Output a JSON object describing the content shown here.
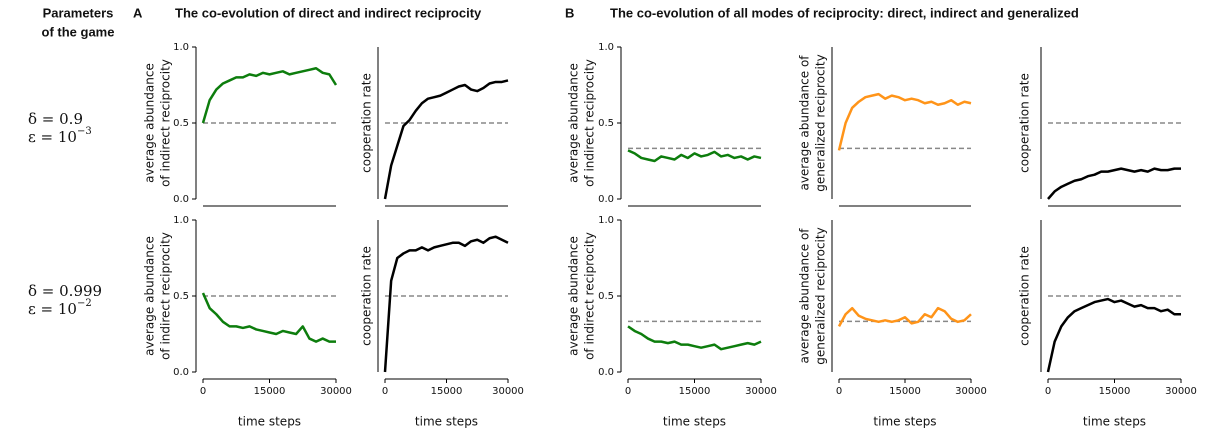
{
  "params_heading": [
    "Parameters",
    "of the game"
  ],
  "params": [
    {
      "delta": "δ = 0.9",
      "epsilon": "ε = 10",
      "epsilon_exp": "−3"
    },
    {
      "delta": "δ = 0.999",
      "epsilon": "ε = 10",
      "epsilon_exp": "−2"
    }
  ],
  "panels": [
    {
      "letter": "A",
      "title": "The co-evolution of direct and indirect reciprocity"
    },
    {
      "letter": "B",
      "title": "The co-evolution of all modes of reciprocity: direct, indirect and generalized"
    }
  ],
  "chart_data": [
    {
      "type": "line",
      "ylabel": [
        "average abundance",
        "of indirect reciprocity"
      ],
      "color": "#0d7d0d",
      "hline": 0.5,
      "x": [
        0,
        1500,
        3000,
        4500,
        6000,
        7500,
        9000,
        10500,
        12000,
        13500,
        15000,
        16500,
        18000,
        19500,
        21000,
        22500,
        24000,
        25500,
        27000,
        28500,
        30000
      ],
      "values": [
        0.5,
        0.65,
        0.72,
        0.76,
        0.78,
        0.8,
        0.8,
        0.82,
        0.81,
        0.83,
        0.82,
        0.83,
        0.84,
        0.82,
        0.83,
        0.84,
        0.85,
        0.86,
        0.83,
        0.82,
        0.75
      ],
      "xlim": [
        0,
        30000
      ],
      "ylim": [
        0,
        1
      ],
      "yticks": [
        {
          "value": 0,
          "label": "0.0"
        },
        {
          "value": 0.5,
          "label": "0.5"
        },
        {
          "value": 1,
          "label": "1.0"
        }
      ]
    },
    {
      "type": "line",
      "ylabel": [
        "cooperation rate"
      ],
      "color": "#000000",
      "hline": 0.5,
      "x": [
        0,
        1500,
        3000,
        4500,
        6000,
        7500,
        9000,
        10500,
        12000,
        13500,
        15000,
        16500,
        18000,
        19500,
        21000,
        22500,
        24000,
        25500,
        27000,
        28500,
        30000
      ],
      "values": [
        0,
        0.22,
        0.35,
        0.48,
        0.52,
        0.58,
        0.63,
        0.66,
        0.67,
        0.68,
        0.7,
        0.72,
        0.74,
        0.75,
        0.72,
        0.71,
        0.73,
        0.76,
        0.77,
        0.77,
        0.78
      ],
      "xlim": [
        0,
        30000
      ],
      "ylim": [
        0,
        1
      ]
    },
    {
      "type": "line",
      "ylabel": [
        "average abundance",
        "of indirect reciprocity"
      ],
      "color": "#0d7d0d",
      "hline": 0.333,
      "x": [
        0,
        1500,
        3000,
        4500,
        6000,
        7500,
        9000,
        10500,
        12000,
        13500,
        15000,
        16500,
        18000,
        19500,
        21000,
        22500,
        24000,
        25500,
        27000,
        28500,
        30000
      ],
      "values": [
        0.32,
        0.3,
        0.27,
        0.26,
        0.25,
        0.28,
        0.27,
        0.26,
        0.29,
        0.27,
        0.3,
        0.28,
        0.29,
        0.31,
        0.28,
        0.29,
        0.27,
        0.28,
        0.26,
        0.28,
        0.27
      ],
      "xlim": [
        0,
        30000
      ],
      "ylim": [
        0,
        1
      ],
      "yticks": [
        {
          "value": 0,
          "label": "0.0"
        },
        {
          "value": 0.5,
          "label": "0.5"
        },
        {
          "value": 1,
          "label": "1.0"
        }
      ]
    },
    {
      "type": "line",
      "ylabel": [
        "average abundance of",
        "generalized reciprocity"
      ],
      "color": "#ff9419",
      "hline": 0.333,
      "x": [
        0,
        1500,
        3000,
        4500,
        6000,
        7500,
        9000,
        10500,
        12000,
        13500,
        15000,
        16500,
        18000,
        19500,
        21000,
        22500,
        24000,
        25500,
        27000,
        28500,
        30000
      ],
      "values": [
        0.32,
        0.5,
        0.6,
        0.64,
        0.67,
        0.68,
        0.69,
        0.66,
        0.68,
        0.67,
        0.65,
        0.66,
        0.65,
        0.63,
        0.64,
        0.62,
        0.63,
        0.65,
        0.62,
        0.64,
        0.63
      ],
      "xlim": [
        0,
        30000
      ],
      "ylim": [
        0,
        1
      ]
    },
    {
      "type": "line",
      "ylabel": [
        "cooperation rate"
      ],
      "color": "#000000",
      "hline": 0.5,
      "x": [
        0,
        1500,
        3000,
        4500,
        6000,
        7500,
        9000,
        10500,
        12000,
        13500,
        15000,
        16500,
        18000,
        19500,
        21000,
        22500,
        24000,
        25500,
        27000,
        28500,
        30000
      ],
      "values": [
        0,
        0.05,
        0.08,
        0.1,
        0.12,
        0.13,
        0.15,
        0.16,
        0.18,
        0.18,
        0.19,
        0.2,
        0.19,
        0.18,
        0.19,
        0.18,
        0.2,
        0.19,
        0.19,
        0.2,
        0.2
      ],
      "xlim": [
        0,
        30000
      ],
      "ylim": [
        0,
        1
      ]
    },
    {
      "type": "line",
      "ylabel": [
        "average abundance",
        "of indirect reciprocity"
      ],
      "xlabel": "time steps",
      "color": "#0d7d0d",
      "hline": 0.5,
      "x": [
        0,
        1500,
        3000,
        4500,
        6000,
        7500,
        9000,
        10500,
        12000,
        13500,
        15000,
        16500,
        18000,
        19500,
        21000,
        22500,
        24000,
        25500,
        27000,
        28500,
        30000
      ],
      "values": [
        0.52,
        0.42,
        0.38,
        0.33,
        0.3,
        0.3,
        0.29,
        0.3,
        0.28,
        0.27,
        0.26,
        0.25,
        0.27,
        0.26,
        0.25,
        0.3,
        0.22,
        0.2,
        0.22,
        0.2,
        0.2
      ],
      "xlim": [
        0,
        30000
      ],
      "ylim": [
        0,
        1
      ],
      "xticks": [
        0,
        15000,
        30000
      ],
      "yticks": [
        {
          "value": 0,
          "label": "0.0"
        },
        {
          "value": 0.5,
          "label": "0.5"
        },
        {
          "value": 1,
          "label": "1.0"
        }
      ]
    },
    {
      "type": "line",
      "ylabel": [
        "cooperation rate"
      ],
      "xlabel": "time steps",
      "color": "#000000",
      "hline": 0.5,
      "x": [
        0,
        1500,
        3000,
        4500,
        6000,
        7500,
        9000,
        10500,
        12000,
        13500,
        15000,
        16500,
        18000,
        19500,
        21000,
        22500,
        24000,
        25500,
        27000,
        28500,
        30000
      ],
      "values": [
        0,
        0.6,
        0.75,
        0.78,
        0.8,
        0.8,
        0.82,
        0.8,
        0.82,
        0.83,
        0.84,
        0.85,
        0.85,
        0.83,
        0.86,
        0.87,
        0.85,
        0.88,
        0.89,
        0.87,
        0.85
      ],
      "xlim": [
        0,
        30000
      ],
      "ylim": [
        0,
        1
      ],
      "xticks": [
        0,
        15000,
        30000
      ]
    },
    {
      "type": "line",
      "ylabel": [
        "average abundance",
        "of indirect reciprocity"
      ],
      "xlabel": "time steps",
      "color": "#0d7d0d",
      "hline": 0.333,
      "x": [
        0,
        1500,
        3000,
        4500,
        6000,
        7500,
        9000,
        10500,
        12000,
        13500,
        15000,
        16500,
        18000,
        19500,
        21000,
        22500,
        24000,
        25500,
        27000,
        28500,
        30000
      ],
      "values": [
        0.3,
        0.27,
        0.25,
        0.22,
        0.2,
        0.2,
        0.19,
        0.2,
        0.18,
        0.18,
        0.17,
        0.16,
        0.17,
        0.18,
        0.15,
        0.16,
        0.17,
        0.18,
        0.19,
        0.18,
        0.2
      ],
      "xlim": [
        0,
        30000
      ],
      "ylim": [
        0,
        1
      ],
      "xticks": [
        0,
        15000,
        30000
      ],
      "yticks": [
        {
          "value": 0,
          "label": "0.0"
        },
        {
          "value": 0.5,
          "label": "0.5"
        },
        {
          "value": 1,
          "label": "1.0"
        }
      ]
    },
    {
      "type": "line",
      "ylabel": [
        "average abundance of",
        "generalized reciprocity"
      ],
      "xlabel": "time steps",
      "color": "#ff9419",
      "hline": 0.333,
      "x": [
        0,
        1500,
        3000,
        4500,
        6000,
        7500,
        9000,
        10500,
        12000,
        13500,
        15000,
        16500,
        18000,
        19500,
        21000,
        22500,
        24000,
        25500,
        27000,
        28500,
        30000
      ],
      "values": [
        0.3,
        0.38,
        0.42,
        0.37,
        0.35,
        0.34,
        0.33,
        0.34,
        0.33,
        0.34,
        0.36,
        0.32,
        0.33,
        0.38,
        0.36,
        0.42,
        0.4,
        0.35,
        0.33,
        0.34,
        0.38
      ],
      "xlim": [
        0,
        30000
      ],
      "ylim": [
        0,
        1
      ],
      "xticks": [
        0,
        15000,
        30000
      ]
    },
    {
      "type": "line",
      "ylabel": [
        "cooperation rate"
      ],
      "xlabel": "time steps",
      "color": "#000000",
      "hline": 0.5,
      "x": [
        0,
        1500,
        3000,
        4500,
        6000,
        7500,
        9000,
        10500,
        12000,
        13500,
        15000,
        16500,
        18000,
        19500,
        21000,
        22500,
        24000,
        25500,
        27000,
        28500,
        30000
      ],
      "values": [
        0,
        0.2,
        0.3,
        0.36,
        0.4,
        0.42,
        0.44,
        0.46,
        0.47,
        0.48,
        0.46,
        0.47,
        0.45,
        0.43,
        0.44,
        0.42,
        0.42,
        0.4,
        0.41,
        0.38,
        0.38
      ],
      "xlim": [
        0,
        30000
      ],
      "ylim": [
        0,
        1
      ],
      "xticks": [
        0,
        15000,
        30000
      ]
    }
  ]
}
